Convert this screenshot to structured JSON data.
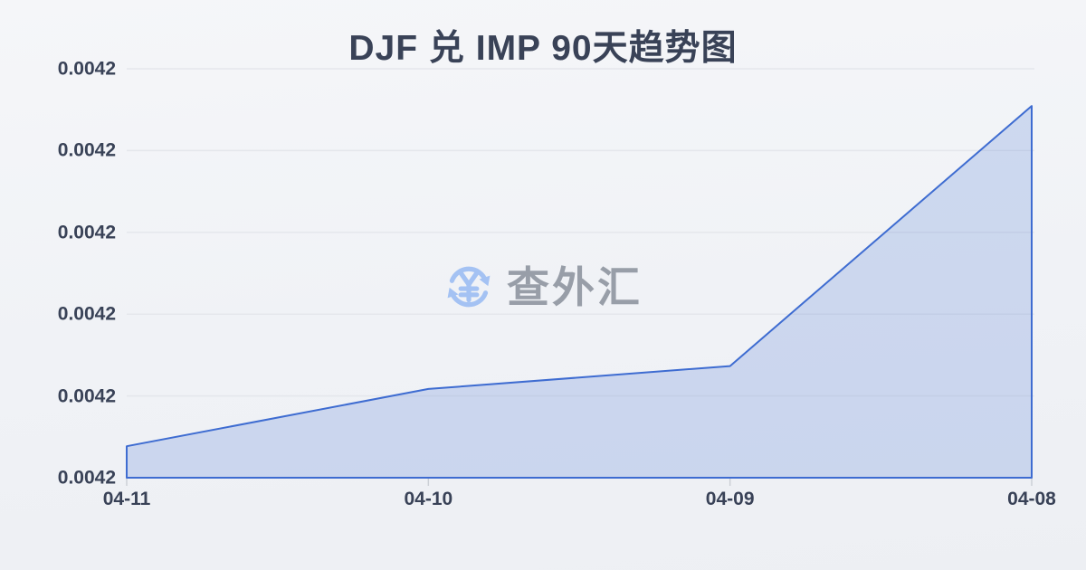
{
  "chart": {
    "title": "DJF 兑 IMP 90天趋势图"
  },
  "watermark": {
    "text": "查外汇",
    "icon": "currency-exchange-yuan-icon",
    "icon_color": "#a4c2f3",
    "text_color": "#989ea8"
  },
  "colors": {
    "line": "#3e6cd1",
    "fill": "rgba(62,108,209,0.20)",
    "gridline": "#e5e7ec",
    "tick": "#ccd0d6",
    "label": "#394257"
  },
  "chart_data": {
    "type": "area",
    "title": "DJF 兑 IMP 90天趋势图",
    "categories": [
      "04-11",
      "04-10",
      "04-09",
      "04-08"
    ],
    "y_tick_labels_top_to_bottom": [
      "0.0042",
      "0.0042",
      "0.0042",
      "0.0042",
      "0.0042",
      "0.0042"
    ],
    "values_display": [
      "0.0042",
      "0.0042",
      "0.0042",
      "0.0042"
    ],
    "points_y_fraction_of_plot_height": [
      0.077,
      0.217,
      0.273,
      0.909
    ],
    "xlabel": "",
    "ylabel": "",
    "grid": true,
    "legend": false
  }
}
